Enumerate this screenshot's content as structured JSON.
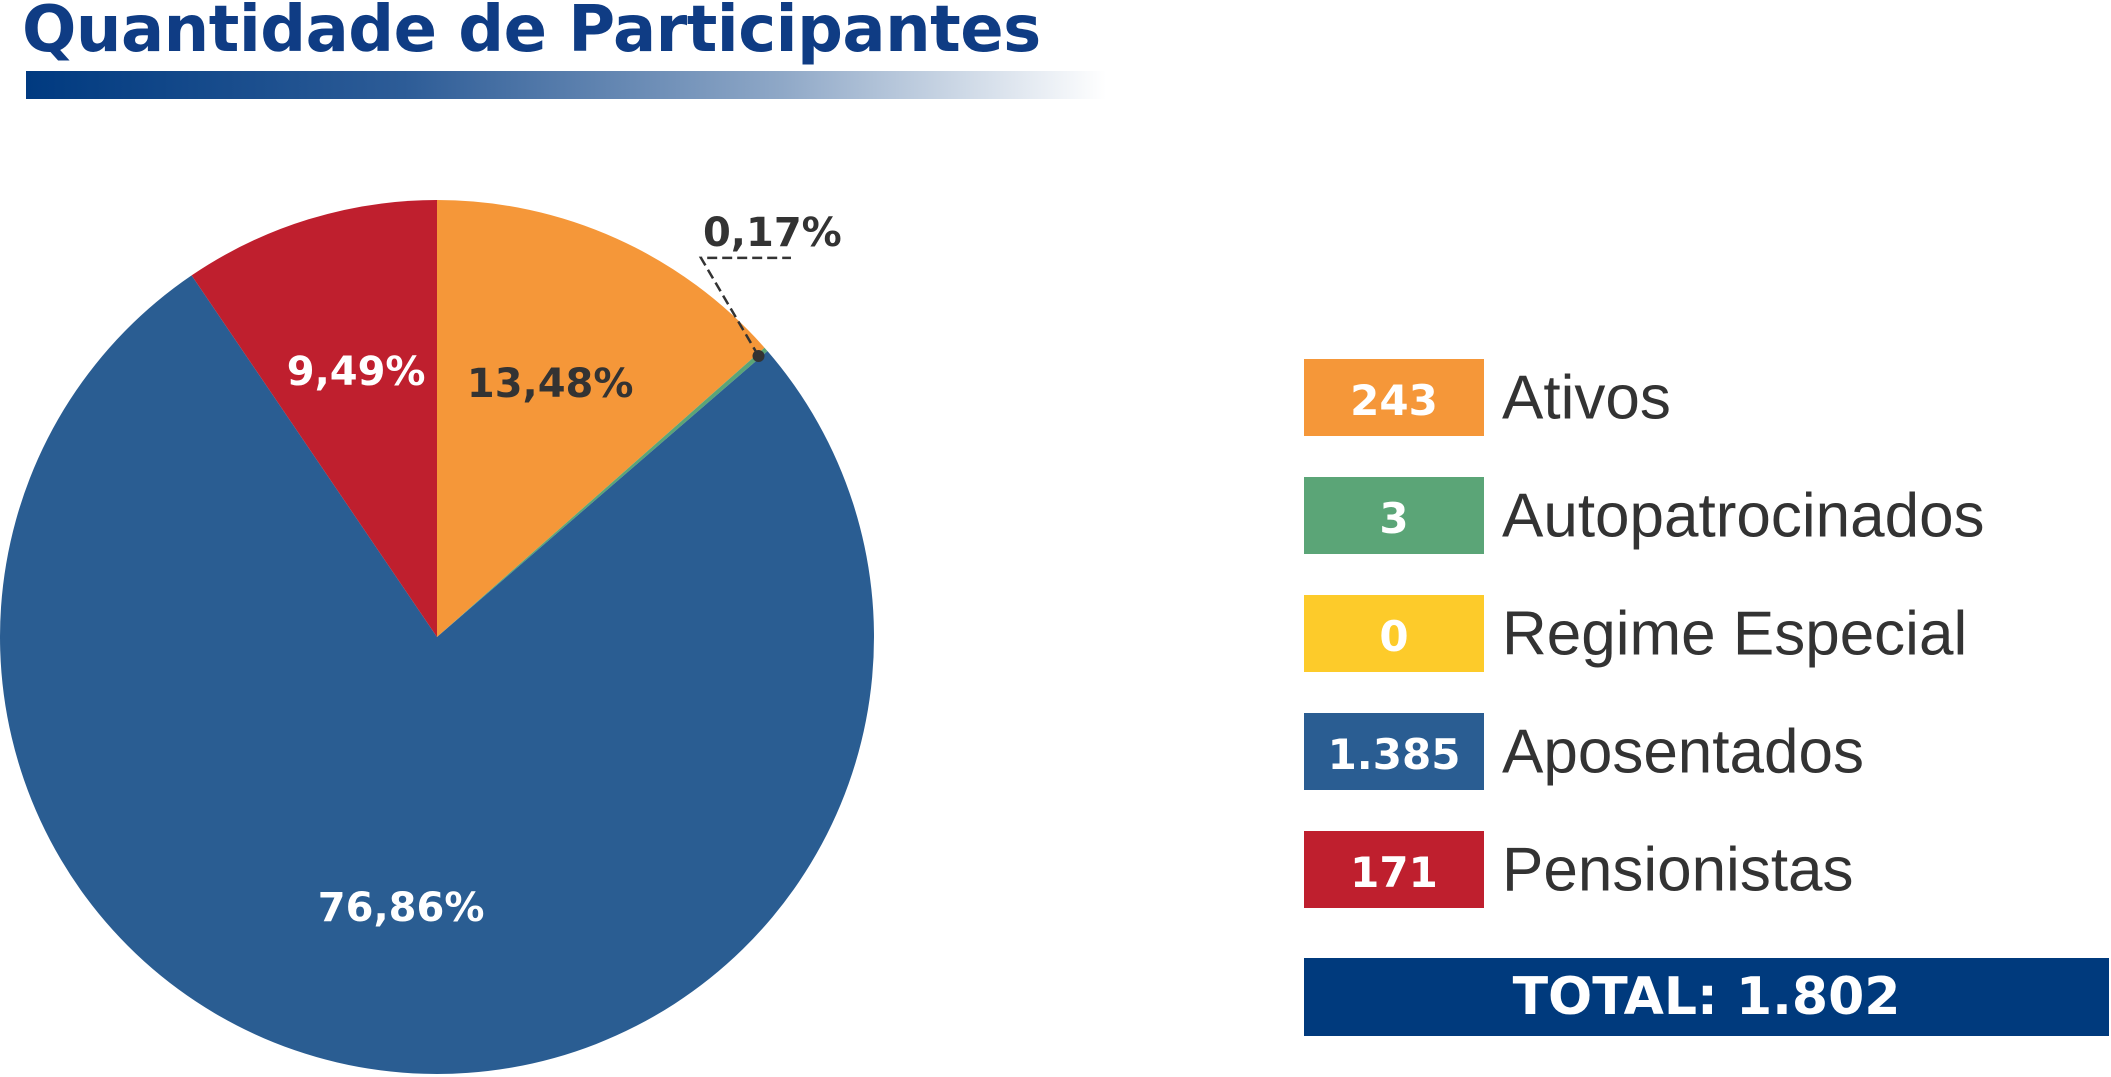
{
  "title": "Quantidade de Participantes",
  "chart_data": {
    "type": "pie",
    "slices": [
      {
        "label": "Ativos",
        "value": 243,
        "percent": 13.48,
        "percent_label": "13,48%",
        "color": "#f59739",
        "label_color": "#333333"
      },
      {
        "label": "Autopatrocinados",
        "value": 3,
        "percent": 0.17,
        "percent_label": "0,17%",
        "color": "#5ba577",
        "label_color": "#333333"
      },
      {
        "label": "Regime Especial",
        "value": 0,
        "percent": 0,
        "percent_label": "",
        "color": "#fdcb2a",
        "label_color": "#ffffff"
      },
      {
        "label": "Aposentados",
        "value": 1385,
        "percent": 76.86,
        "percent_label": "76,86%",
        "color": "#2a5d92",
        "label_color": "#ffffff"
      },
      {
        "label": "Pensionistas",
        "value": 171,
        "percent": 9.49,
        "percent_label": "9,49%",
        "color": "#bf1f2e",
        "label_color": "#ffffff"
      }
    ],
    "legend_position": "right"
  },
  "legend": [
    {
      "value": "243",
      "label": "Ativos",
      "color": "#f59739"
    },
    {
      "value": "3",
      "label": "Autopatrocinados",
      "color": "#5ba577"
    },
    {
      "value": "0",
      "label": "Regime Especial",
      "color": "#fdcb2a"
    },
    {
      "value": "1.385",
      "label": "Aposentados",
      "color": "#2a5d92"
    },
    {
      "value": "171",
      "label": "Pensionistas",
      "color": "#bf1f2e"
    }
  ],
  "total": {
    "label": "TOTAL: 1.802",
    "color": "#003a7d"
  }
}
